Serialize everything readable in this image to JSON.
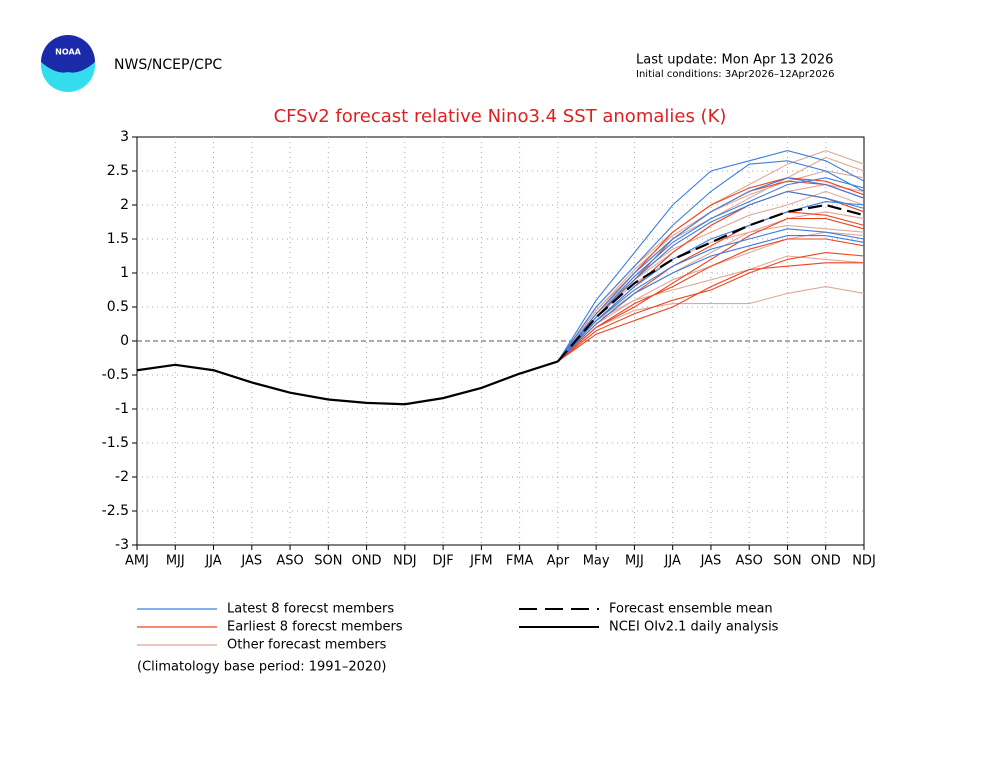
{
  "header": {
    "agency": "NWS/NCEP/CPC",
    "logo_text": "NOAA",
    "last_update": "Last update: Mon Apr 13 2026",
    "initial_conditions": "Initial conditions: 3Apr2026–12Apr2026"
  },
  "chart_data": {
    "type": "plume",
    "title": "CFSv2 forecast relative Nino3.4 SST anomalies (K)",
    "categories": [
      "AMJ",
      "MJJ",
      "JJA",
      "JAS",
      "ASO",
      "SON",
      "OND",
      "NDJ",
      "DJF",
      "JFM",
      "FMA",
      "Apr",
      "May",
      "MJJ",
      "JJA",
      "JAS",
      "ASO",
      "SON",
      "OND",
      "NDJ"
    ],
    "ylim": [
      -3,
      3
    ],
    "yticks": [
      -3,
      -2.5,
      -2,
      -1.5,
      -1,
      -0.5,
      0,
      0.5,
      1,
      1.5,
      2,
      2.5,
      3
    ],
    "grid": true,
    "member_groups": [
      {
        "name": "Other forecast members",
        "color": "#e0a898",
        "members": [
          [
            null,
            null,
            null,
            null,
            null,
            null,
            null,
            null,
            null,
            null,
            null,
            -0.3,
            0.5,
            1.1,
            1.6,
            2.0,
            2.3,
            2.6,
            2.8,
            2.6
          ],
          [
            null,
            null,
            null,
            null,
            null,
            null,
            null,
            null,
            null,
            null,
            null,
            -0.3,
            0.45,
            1.0,
            1.5,
            1.8,
            2.1,
            2.4,
            2.7,
            2.5
          ],
          [
            null,
            null,
            null,
            null,
            null,
            null,
            null,
            null,
            null,
            null,
            null,
            -0.3,
            0.4,
            0.9,
            1.3,
            1.7,
            2.0,
            2.2,
            2.3,
            2.2
          ],
          [
            null,
            null,
            null,
            null,
            null,
            null,
            null,
            null,
            null,
            null,
            null,
            -0.3,
            0.3,
            0.7,
            1.0,
            1.3,
            1.6,
            1.8,
            1.9,
            1.8
          ],
          [
            null,
            null,
            null,
            null,
            null,
            null,
            null,
            null,
            null,
            null,
            null,
            -0.3,
            0.25,
            0.6,
            0.9,
            1.1,
            1.3,
            1.5,
            1.6,
            1.55
          ],
          [
            null,
            null,
            null,
            null,
            null,
            null,
            null,
            null,
            null,
            null,
            null,
            -0.3,
            0.2,
            0.45,
            0.55,
            0.55,
            0.55,
            0.7,
            0.8,
            0.7
          ],
          [
            null,
            null,
            null,
            null,
            null,
            null,
            null,
            null,
            null,
            null,
            null,
            -0.3,
            0.3,
            0.6,
            0.75,
            0.9,
            1.05,
            1.25,
            1.2,
            1.15
          ],
          [
            null,
            null,
            null,
            null,
            null,
            null,
            null,
            null,
            null,
            null,
            null,
            -0.3,
            0.35,
            0.85,
            1.2,
            1.45,
            1.6,
            1.7,
            1.65,
            1.6
          ],
          [
            null,
            null,
            null,
            null,
            null,
            null,
            null,
            null,
            null,
            null,
            null,
            -0.3,
            0.45,
            1.05,
            1.55,
            1.9,
            2.15,
            2.35,
            2.5,
            2.4
          ],
          [
            null,
            null,
            null,
            null,
            null,
            null,
            null,
            null,
            null,
            null,
            null,
            -0.3,
            0.4,
            0.95,
            1.35,
            1.6,
            1.85,
            2.0,
            2.2,
            2.0
          ]
        ]
      },
      {
        "name": "Earliest 8 forecst members",
        "color": "#ee4422",
        "members": [
          [
            null,
            null,
            null,
            null,
            null,
            null,
            null,
            null,
            null,
            null,
            null,
            -0.3,
            0.1,
            0.3,
            0.5,
            0.8,
            1.05,
            1.1,
            1.15,
            1.15
          ],
          [
            null,
            null,
            null,
            null,
            null,
            null,
            null,
            null,
            null,
            null,
            null,
            -0.3,
            0.15,
            0.4,
            0.6,
            0.75,
            1.0,
            1.2,
            1.3,
            1.25
          ],
          [
            null,
            null,
            null,
            null,
            null,
            null,
            null,
            null,
            null,
            null,
            null,
            -0.3,
            0.2,
            0.55,
            0.8,
            1.1,
            1.35,
            1.5,
            1.5,
            1.4
          ],
          [
            null,
            null,
            null,
            null,
            null,
            null,
            null,
            null,
            null,
            null,
            null,
            -0.3,
            0.25,
            0.7,
            1.1,
            1.4,
            1.7,
            1.9,
            1.85,
            1.7
          ],
          [
            null,
            null,
            null,
            null,
            null,
            null,
            null,
            null,
            null,
            null,
            null,
            -0.3,
            0.3,
            0.8,
            1.3,
            1.7,
            2.0,
            2.2,
            2.1,
            1.9
          ],
          [
            null,
            null,
            null,
            null,
            null,
            null,
            null,
            null,
            null,
            null,
            null,
            -0.3,
            0.35,
            0.9,
            1.5,
            1.9,
            2.2,
            2.35,
            2.3,
            2.1
          ],
          [
            null,
            null,
            null,
            null,
            null,
            null,
            null,
            null,
            null,
            null,
            null,
            -0.3,
            0.4,
            1.0,
            1.6,
            2.0,
            2.25,
            2.4,
            2.35,
            2.15
          ],
          [
            null,
            null,
            null,
            null,
            null,
            null,
            null,
            null,
            null,
            null,
            null,
            -0.3,
            0.2,
            0.5,
            0.85,
            1.2,
            1.55,
            1.8,
            1.8,
            1.65
          ]
        ]
      },
      {
        "name": "Latest 8 forecst members",
        "color": "#3a7ee0",
        "members": [
          [
            null,
            null,
            null,
            null,
            null,
            null,
            null,
            null,
            null,
            null,
            null,
            -0.3,
            0.6,
            1.3,
            2.0,
            2.5,
            2.65,
            2.8,
            2.65,
            2.35
          ],
          [
            null,
            null,
            null,
            null,
            null,
            null,
            null,
            null,
            null,
            null,
            null,
            -0.3,
            0.5,
            1.1,
            1.7,
            2.2,
            2.6,
            2.65,
            2.5,
            2.2
          ],
          [
            null,
            null,
            null,
            null,
            null,
            null,
            null,
            null,
            null,
            null,
            null,
            -0.3,
            0.4,
            1.0,
            1.5,
            1.9,
            2.2,
            2.4,
            2.3,
            2.1
          ],
          [
            null,
            null,
            null,
            null,
            null,
            null,
            null,
            null,
            null,
            null,
            null,
            -0.3,
            0.35,
            0.9,
            1.4,
            1.75,
            2.0,
            2.2,
            2.1,
            1.95
          ],
          [
            null,
            null,
            null,
            null,
            null,
            null,
            null,
            null,
            null,
            null,
            null,
            -0.3,
            0.3,
            0.8,
            1.2,
            1.5,
            1.7,
            1.9,
            2.05,
            2.0
          ],
          [
            null,
            null,
            null,
            null,
            null,
            null,
            null,
            null,
            null,
            null,
            null,
            -0.3,
            0.3,
            0.75,
            1.1,
            1.35,
            1.5,
            1.65,
            1.6,
            1.5
          ],
          [
            null,
            null,
            null,
            null,
            null,
            null,
            null,
            null,
            null,
            null,
            null,
            -0.3,
            0.25,
            0.7,
            1.0,
            1.25,
            1.4,
            1.55,
            1.55,
            1.45
          ],
          [
            null,
            null,
            null,
            null,
            null,
            null,
            null,
            null,
            null,
            null,
            null,
            -0.3,
            0.35,
            0.95,
            1.45,
            1.8,
            2.05,
            2.3,
            2.4,
            2.25
          ]
        ]
      }
    ],
    "series": [
      {
        "name": "Forecast ensemble mean",
        "color": "#000000",
        "dashed": true,
        "values": [
          null,
          null,
          null,
          null,
          null,
          null,
          null,
          null,
          null,
          null,
          null,
          -0.3,
          0.35,
          0.85,
          1.2,
          1.45,
          1.7,
          1.9,
          2.0,
          1.85
        ]
      },
      {
        "name": "NCEI OIv2.1 daily analysis",
        "color": "#000000",
        "dashed": false,
        "values": [
          -0.43,
          -0.35,
          -0.43,
          -0.61,
          -0.76,
          -0.86,
          -0.91,
          -0.93,
          -0.84,
          -0.69,
          -0.48,
          -0.3,
          null,
          null,
          null,
          null,
          null,
          null,
          null,
          null
        ]
      }
    ],
    "note": "(Climatology base period: 1991–2020)"
  }
}
